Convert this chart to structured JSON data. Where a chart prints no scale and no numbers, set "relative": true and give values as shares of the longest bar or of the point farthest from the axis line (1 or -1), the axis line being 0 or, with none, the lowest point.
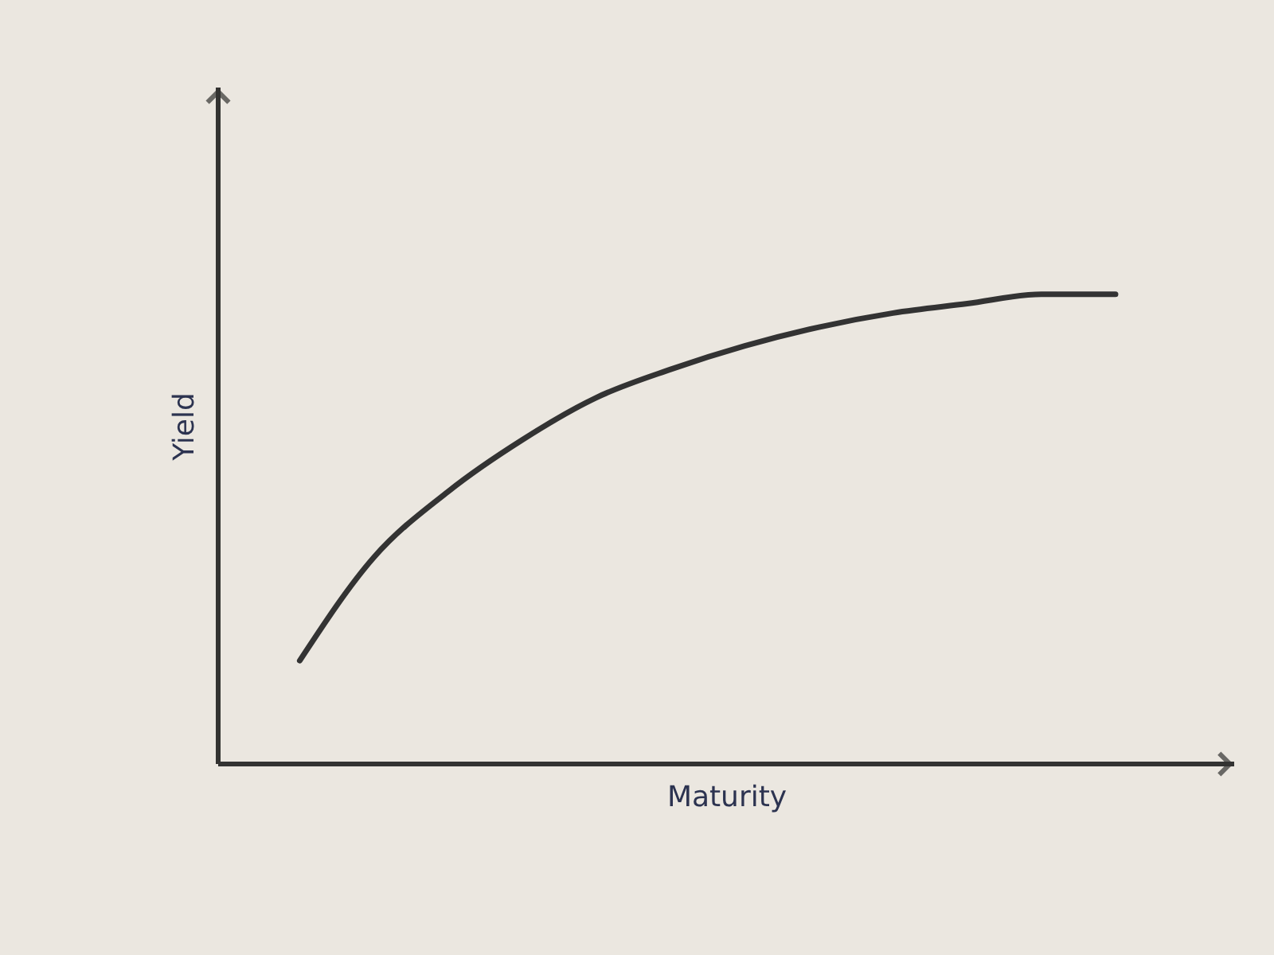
{
  "chart_data": {
    "type": "line",
    "relative": true,
    "xlabel": "Maturity",
    "ylabel": "Yield",
    "categories": [
      null,
      null,
      null,
      null,
      null,
      null,
      null,
      null,
      null,
      null,
      null,
      null
    ],
    "series": [
      {
        "color": "#333333",
        "values": [
          0.22,
          0.44,
          0.58,
          0.69,
          0.78,
          0.84,
          0.89,
          0.93,
          0.96,
          0.98,
          1.0,
          1.0
        ]
      }
    ],
    "grid": false,
    "legend": false,
    "marker": "none",
    "line_style": "solid"
  }
}
